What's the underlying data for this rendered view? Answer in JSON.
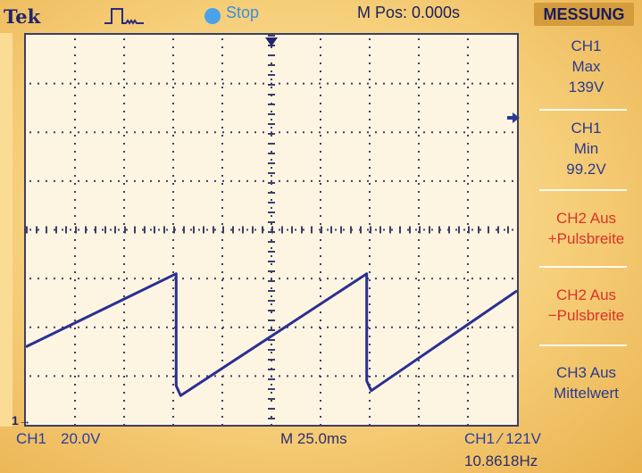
{
  "header": {
    "brand": "Tek",
    "trigger_icon": "pulse-trigger-icon",
    "run_state": "Stop",
    "run_state_color": "#3b8ee0",
    "mpos": "M Pos: 0.000s"
  },
  "menu": {
    "title": "MESSUNG",
    "items": [
      {
        "source": "CH1",
        "type": "Max",
        "value": "139V"
      },
      {
        "source": "CH1",
        "type": "Min",
        "value": "99.2V"
      },
      {
        "source": "CH2 Aus",
        "type": "+Pulsbreite"
      },
      {
        "source": "CH2 Aus",
        "type": "−Pulsbreite"
      },
      {
        "source": "CH3 Aus",
        "type": "Mittelwert"
      }
    ]
  },
  "footer": {
    "ch1_label": "CH1",
    "ch1_scale": "20.0V",
    "timebase": "M 25.0ms",
    "trigger_readout": "CH1 ∕ 121V",
    "frequency": "10.8618Hz"
  },
  "ch1_ground_marker": "1→",
  "colors": {
    "trace": "#2b2f92",
    "grid": "#3e3e66",
    "accent": "#d49c3c"
  },
  "chart_data": {
    "type": "line",
    "x_divisions": 10,
    "y_divisions": 8,
    "series": [
      {
        "x": [
          0.0,
          3.06,
          3.06,
          3.15,
          6.94,
          6.94,
          7.03,
          10.0
        ],
        "y": [
          1.6,
          3.1,
          0.8,
          0.6,
          3.1,
          0.9,
          0.7,
          2.75
        ]
      }
    ]
  }
}
